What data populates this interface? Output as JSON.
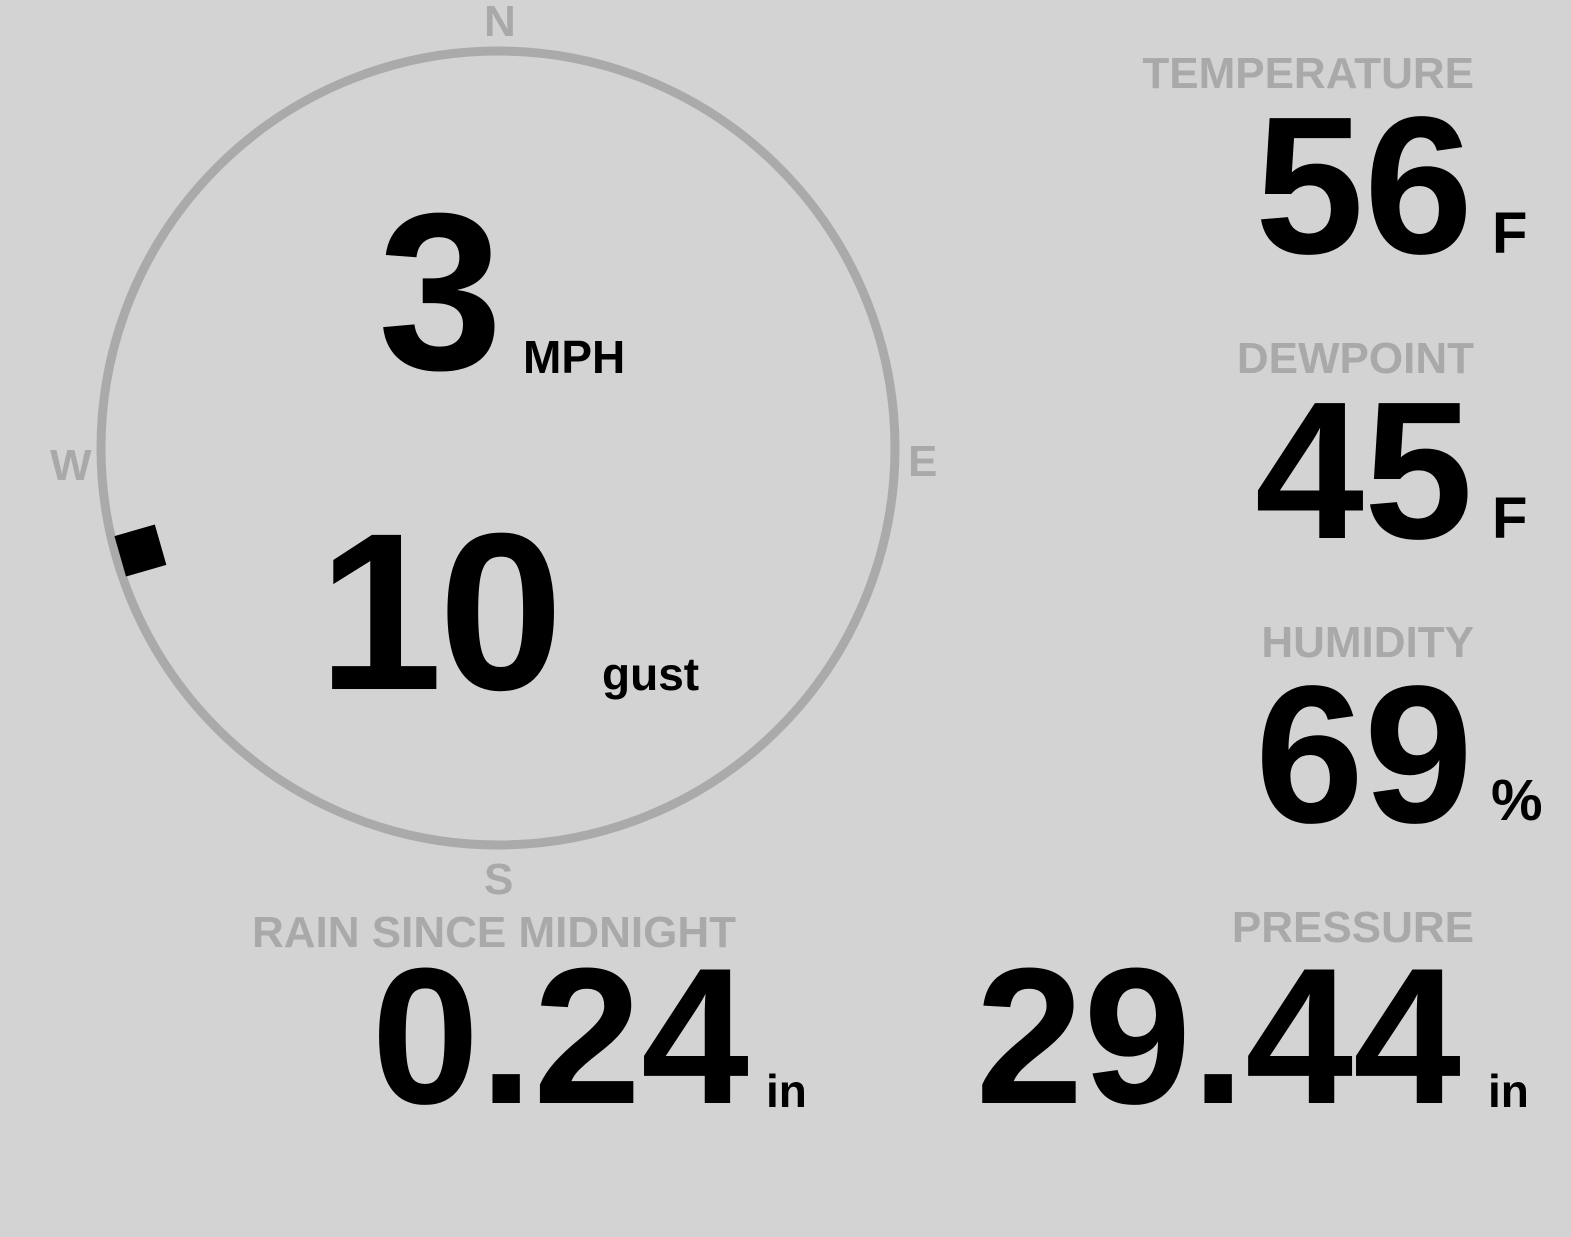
{
  "wind": {
    "speed": "3",
    "speed_unit": "MPH",
    "gust": "10",
    "gust_unit": "gust",
    "direction_deg": 254,
    "compass": {
      "n": "N",
      "e": "E",
      "s": "S",
      "w": "W"
    }
  },
  "temperature": {
    "label": "TEMPERATURE",
    "value": "56",
    "unit": "F"
  },
  "dewpoint": {
    "label": "DEWPOINT",
    "value": "45",
    "unit": "F"
  },
  "humidity": {
    "label": "HUMIDITY",
    "value": "69",
    "unit": "%"
  },
  "rain": {
    "label": "RAIN SINCE MIDNIGHT",
    "value": "0.24",
    "unit": "in"
  },
  "pressure": {
    "label": "PRESSURE",
    "value": "29.44",
    "unit": "in"
  },
  "colors": {
    "background": "#d3d3d3",
    "label": "#a9a9a9",
    "value": "#000000",
    "ring": "#aaaaaa"
  }
}
